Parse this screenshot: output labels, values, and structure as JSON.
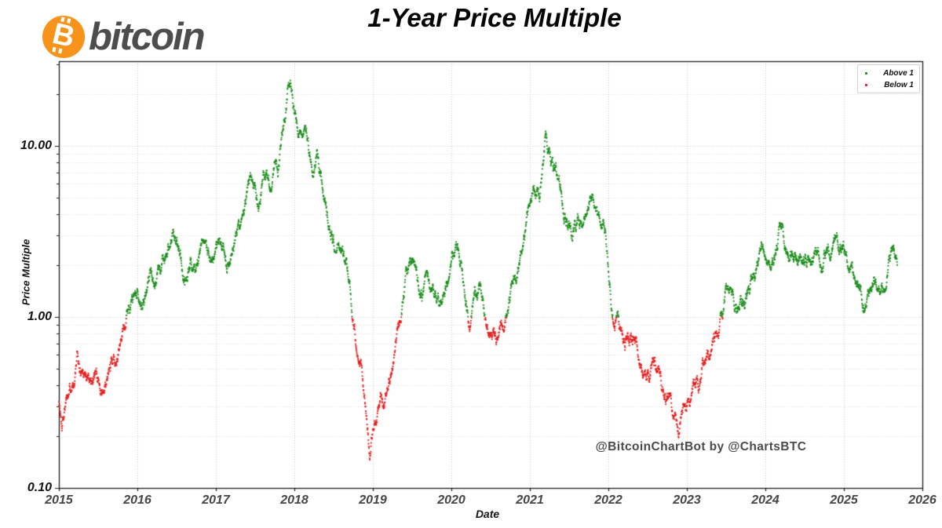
{
  "header": {
    "logo_symbol": "B",
    "logo_text": "bitcoin",
    "title": "1-Year Price Multiple"
  },
  "watermark": "@BitcoinChartBot by @ChartsBTC",
  "legend": {
    "items": [
      {
        "label": "Above 1",
        "color": "#1a8c1a"
      },
      {
        "label": "Below 1",
        "color": "#e51c1c"
      }
    ]
  },
  "colors": {
    "above": "#1a8c1a",
    "below": "#e51c1c",
    "logo_orange": "#f7931a",
    "logo_text_gray": "#4d4d4e",
    "grid_major": "#c9c9c9",
    "grid_minor": "#dedede",
    "frame": "#1a1a1a"
  },
  "chart_data": {
    "type": "scatter",
    "title": "1-Year Price Multiple",
    "xlabel": "Date",
    "ylabel": "Price Multiple",
    "x_tick_labels": [
      "2015",
      "2016",
      "2017",
      "2018",
      "2019",
      "2020",
      "2021",
      "2022",
      "2023",
      "2024",
      "2025",
      "2026"
    ],
    "y_ticks": [
      {
        "value": 10,
        "label": "10.00"
      },
      {
        "value": 1,
        "label": "1.00"
      },
      {
        "value": 0.1,
        "label": "0.10"
      }
    ],
    "xlim": [
      2015,
      2026
    ],
    "ylim": [
      0.1,
      31.3
    ],
    "y_scale": "log",
    "grid": "dotted, major and minor log gridlines",
    "legend_position": "upper right",
    "color_rule": "point is green when multiple >= 1, red when below 1",
    "x_end": 2025.68,
    "points_per_year": 365,
    "anchors": [
      [
        2015.0,
        0.33
      ],
      [
        2015.04,
        0.23
      ],
      [
        2015.1,
        0.4
      ],
      [
        2015.16,
        0.45
      ],
      [
        2015.2,
        0.48
      ],
      [
        2015.23,
        0.6
      ],
      [
        2015.27,
        0.48
      ],
      [
        2015.33,
        0.5
      ],
      [
        2015.38,
        0.44
      ],
      [
        2015.45,
        0.5
      ],
      [
        2015.5,
        0.46
      ],
      [
        2015.55,
        0.4
      ],
      [
        2015.6,
        0.37
      ],
      [
        2015.65,
        0.45
      ],
      [
        2015.7,
        0.52
      ],
      [
        2015.75,
        0.62
      ],
      [
        2015.8,
        0.78
      ],
      [
        2015.85,
        1.02
      ],
      [
        2015.9,
        1.25
      ],
      [
        2015.95,
        1.45
      ],
      [
        2016.0,
        1.6
      ],
      [
        2016.06,
        1.25
      ],
      [
        2016.12,
        1.4
      ],
      [
        2016.2,
        1.7
      ],
      [
        2016.28,
        1.95
      ],
      [
        2016.35,
        2.3
      ],
      [
        2016.42,
        2.7
      ],
      [
        2016.46,
        2.95
      ],
      [
        2016.52,
        2.3
      ],
      [
        2016.58,
        1.95
      ],
      [
        2016.62,
        1.8
      ],
      [
        2016.7,
        2.1
      ],
      [
        2016.78,
        2.4
      ],
      [
        2016.85,
        2.3
      ],
      [
        2016.92,
        2.3
      ],
      [
        2017.0,
        2.45
      ],
      [
        2017.08,
        2.3
      ],
      [
        2017.13,
        2.0
      ],
      [
        2017.2,
        2.5
      ],
      [
        2017.28,
        3.0
      ],
      [
        2017.35,
        4.0
      ],
      [
        2017.42,
        5.4
      ],
      [
        2017.47,
        6.5
      ],
      [
        2017.52,
        5.2
      ],
      [
        2017.56,
        4.6
      ],
      [
        2017.62,
        6.8
      ],
      [
        2017.66,
        8.0
      ],
      [
        2017.7,
        6.2
      ],
      [
        2017.75,
        9.5
      ],
      [
        2017.79,
        8.0
      ],
      [
        2017.84,
        12.0
      ],
      [
        2017.89,
        18.0
      ],
      [
        2017.94,
        24.5
      ],
      [
        2017.97,
        22.0
      ],
      [
        2018.0,
        17.5
      ],
      [
        2018.04,
        13.5
      ],
      [
        2018.09,
        14.0
      ],
      [
        2018.13,
        11.0
      ],
      [
        2018.18,
        9.8
      ],
      [
        2018.24,
        7.2
      ],
      [
        2018.29,
        7.8
      ],
      [
        2018.33,
        6.0
      ],
      [
        2018.38,
        4.6
      ],
      [
        2018.44,
        3.3
      ],
      [
        2018.5,
        2.95
      ],
      [
        2018.56,
        2.85
      ],
      [
        2018.62,
        2.3
      ],
      [
        2018.68,
        1.9
      ],
      [
        2018.72,
        1.35
      ],
      [
        2018.76,
        1.0
      ],
      [
        2018.8,
        0.72
      ],
      [
        2018.85,
        0.57
      ],
      [
        2018.88,
        0.45
      ],
      [
        2018.92,
        0.3
      ],
      [
        2018.96,
        0.175
      ],
      [
        2019.0,
        0.26
      ],
      [
        2019.05,
        0.29
      ],
      [
        2019.1,
        0.4
      ],
      [
        2019.15,
        0.34
      ],
      [
        2019.22,
        0.5
      ],
      [
        2019.28,
        0.72
      ],
      [
        2019.34,
        1.0
      ],
      [
        2019.4,
        1.55
      ],
      [
        2019.47,
        2.25
      ],
      [
        2019.53,
        1.8
      ],
      [
        2019.58,
        1.45
      ],
      [
        2019.63,
        1.32
      ],
      [
        2019.68,
        1.65
      ],
      [
        2019.74,
        1.3
      ],
      [
        2019.8,
        1.45
      ],
      [
        2019.86,
        1.4
      ],
      [
        2019.92,
        1.6
      ],
      [
        2019.97,
        2.05
      ],
      [
        2020.05,
        2.85
      ],
      [
        2020.12,
        2.25
      ],
      [
        2020.18,
        1.4
      ],
      [
        2020.24,
        0.95
      ],
      [
        2020.3,
        1.4
      ],
      [
        2020.37,
        1.62
      ],
      [
        2020.44,
        1.1
      ],
      [
        2020.5,
        0.85
      ],
      [
        2020.57,
        0.76
      ],
      [
        2020.63,
        0.88
      ],
      [
        2020.7,
        1.1
      ],
      [
        2020.77,
        1.4
      ],
      [
        2020.84,
        1.8
      ],
      [
        2020.9,
        2.3
      ],
      [
        2020.96,
        3.3
      ],
      [
        2021.02,
        4.4
      ],
      [
        2021.07,
        5.4
      ],
      [
        2021.1,
        5.9
      ],
      [
        2021.13,
        5.2
      ],
      [
        2021.17,
        8.5
      ],
      [
        2021.21,
        12.0
      ],
      [
        2021.25,
        9.8
      ],
      [
        2021.3,
        7.3
      ],
      [
        2021.34,
        6.6
      ],
      [
        2021.38,
        5.4
      ],
      [
        2021.43,
        4.3
      ],
      [
        2021.49,
        3.8
      ],
      [
        2021.54,
        3.3
      ],
      [
        2021.6,
        3.7
      ],
      [
        2021.66,
        4.0
      ],
      [
        2021.71,
        4.6
      ],
      [
        2021.76,
        5.4
      ],
      [
        2021.8,
        5.6
      ],
      [
        2021.85,
        4.9
      ],
      [
        2021.9,
        4.2
      ],
      [
        2021.94,
        3.4
      ],
      [
        2021.97,
        2.9
      ],
      [
        2022.0,
        1.9
      ],
      [
        2022.04,
        1.3
      ],
      [
        2022.08,
        1.0
      ],
      [
        2022.12,
        0.92
      ],
      [
        2022.17,
        0.8
      ],
      [
        2022.21,
        0.7
      ],
      [
        2022.26,
        0.82
      ],
      [
        2022.31,
        0.72
      ],
      [
        2022.35,
        0.85
      ],
      [
        2022.4,
        0.62
      ],
      [
        2022.46,
        0.5
      ],
      [
        2022.52,
        0.41
      ],
      [
        2022.57,
        0.5
      ],
      [
        2022.62,
        0.46
      ],
      [
        2022.68,
        0.38
      ],
      [
        2022.74,
        0.34
      ],
      [
        2022.8,
        0.29
      ],
      [
        2022.85,
        0.26
      ],
      [
        2022.89,
        0.235
      ],
      [
        2022.93,
        0.27
      ],
      [
        2022.97,
        0.32
      ],
      [
        2023.02,
        0.33
      ],
      [
        2023.07,
        0.39
      ],
      [
        2023.12,
        0.46
      ],
      [
        2023.16,
        0.43
      ],
      [
        2023.22,
        0.55
      ],
      [
        2023.28,
        0.63
      ],
      [
        2023.34,
        0.74
      ],
      [
        2023.4,
        0.86
      ],
      [
        2023.46,
        0.97
      ],
      [
        2023.5,
        1.45
      ],
      [
        2023.55,
        1.6
      ],
      [
        2023.6,
        1.33
      ],
      [
        2023.66,
        1.25
      ],
      [
        2023.72,
        1.4
      ],
      [
        2023.76,
        1.3
      ],
      [
        2023.82,
        1.6
      ],
      [
        2023.88,
        1.85
      ],
      [
        2023.93,
        2.2
      ],
      [
        2023.98,
        2.5
      ],
      [
        2024.03,
        2.45
      ],
      [
        2024.08,
        2.25
      ],
      [
        2024.13,
        2.7
      ],
      [
        2024.18,
        3.2
      ],
      [
        2024.21,
        3.35
      ],
      [
        2024.26,
        2.55
      ],
      [
        2024.31,
        2.2
      ],
      [
        2024.36,
        2.4
      ],
      [
        2024.42,
        2.45
      ],
      [
        2024.47,
        2.25
      ],
      [
        2024.52,
        2.3
      ],
      [
        2024.57,
        2.1
      ],
      [
        2024.62,
        2.45
      ],
      [
        2024.68,
        2.25
      ],
      [
        2024.73,
        2.05
      ],
      [
        2024.78,
        2.4
      ],
      [
        2024.84,
        2.6
      ],
      [
        2024.89,
        2.7
      ],
      [
        2024.94,
        2.4
      ],
      [
        2025.0,
        2.3
      ],
      [
        2025.05,
        2.1
      ],
      [
        2025.1,
        1.85
      ],
      [
        2025.15,
        1.55
      ],
      [
        2025.2,
        1.3
      ],
      [
        2025.26,
        1.15
      ],
      [
        2025.31,
        1.3
      ],
      [
        2025.36,
        1.45
      ],
      [
        2025.42,
        1.5
      ],
      [
        2025.47,
        1.7
      ],
      [
        2025.52,
        1.7
      ],
      [
        2025.57,
        1.95
      ],
      [
        2025.61,
        2.1
      ],
      [
        2025.65,
        2.2
      ],
      [
        2025.68,
        2.0
      ]
    ]
  }
}
